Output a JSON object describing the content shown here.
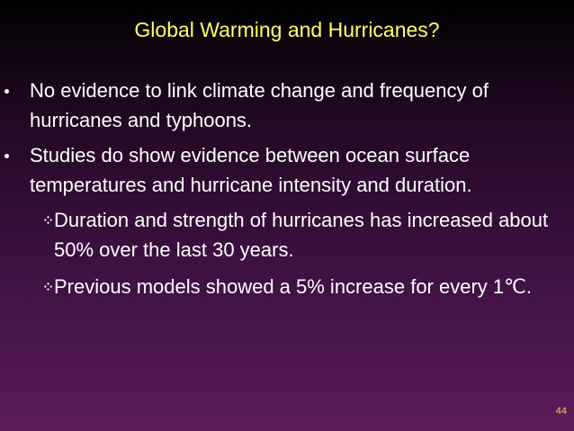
{
  "title": "Global Warming and Hurricanes?",
  "bullets": [
    {
      "text": "No evidence to link climate change and frequency of hurricanes and typhoons."
    },
    {
      "text": "Studies do show evidence between ocean surface temperatures and hurricane intensity and duration.",
      "sub_bullets": [
        "Duration and strength of hurricanes has increased about 50% over the last 30 years.",
        "Previous models showed a 5% increase for every 1℃."
      ]
    }
  ],
  "page_number": "44"
}
